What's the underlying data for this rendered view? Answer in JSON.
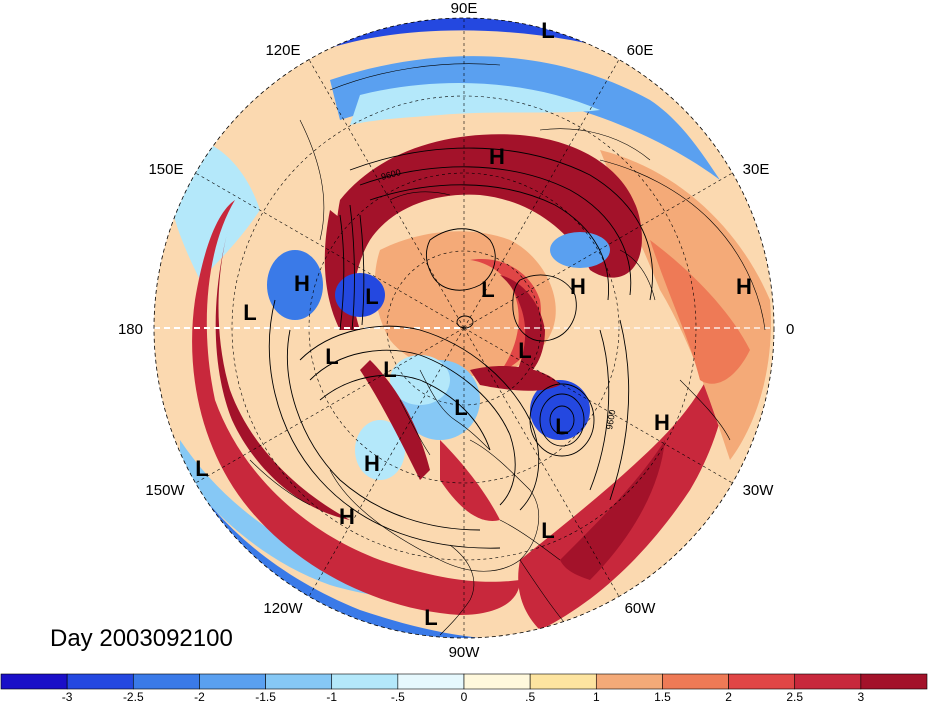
{
  "title": "Day 2003092100",
  "longitude_labels": [
    {
      "text": "90E",
      "lon": 90
    },
    {
      "text": "60E",
      "lon": 60
    },
    {
      "text": "30E",
      "lon": 30
    },
    {
      "text": "0",
      "lon": 0
    },
    {
      "text": "30W",
      "lon": -30
    },
    {
      "text": "60W",
      "lon": -60
    },
    {
      "text": "90W",
      "lon": -90
    },
    {
      "text": "120W",
      "lon": -120
    },
    {
      "text": "150W",
      "lon": -150
    },
    {
      "text": "180",
      "lon": 180
    },
    {
      "text": "150E",
      "lon": 150
    },
    {
      "text": "120E",
      "lon": 120
    }
  ],
  "contour_labels": [
    {
      "text": "9600"
    },
    {
      "text": "9600"
    }
  ],
  "pressure_centers": [
    {
      "text": "L",
      "type": "low"
    },
    {
      "text": "H",
      "type": "high"
    },
    {
      "text": "H",
      "type": "high"
    },
    {
      "text": "L",
      "type": "low"
    },
    {
      "text": "L",
      "type": "low"
    },
    {
      "text": "H",
      "type": "high"
    },
    {
      "text": "H",
      "type": "high"
    },
    {
      "text": "L",
      "type": "low"
    },
    {
      "text": "L",
      "type": "low"
    },
    {
      "text": "L",
      "type": "low"
    },
    {
      "text": "L",
      "type": "low"
    },
    {
      "text": "L",
      "type": "low"
    },
    {
      "text": "L",
      "type": "low"
    },
    {
      "text": "H",
      "type": "high"
    },
    {
      "text": "H",
      "type": "high"
    },
    {
      "text": "L",
      "type": "low"
    },
    {
      "text": "H",
      "type": "high"
    },
    {
      "text": "L",
      "type": "low"
    },
    {
      "text": "L",
      "type": "low"
    }
  ],
  "colorbar": {
    "colors": [
      "#1a0fc8",
      "#2448e0",
      "#3a7ae8",
      "#5aa0f0",
      "#86c8f5",
      "#b4e8fa",
      "#e6f8fd",
      "#fff8dc",
      "#fde4a0",
      "#f4aa78",
      "#ee7a56",
      "#e04646",
      "#c8283c",
      "#a3122a"
    ],
    "labels": [
      "-3",
      "-2.5",
      "-2",
      "-1.5",
      "-1",
      "-.5",
      "0",
      ".5",
      "1",
      "1.5",
      "2",
      "2.5",
      "3"
    ]
  }
}
